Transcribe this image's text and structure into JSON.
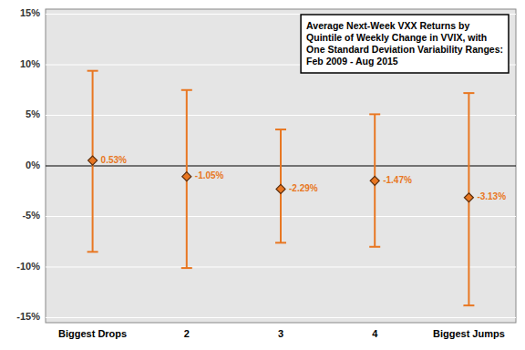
{
  "chart_data": {
    "type": "errorbar",
    "title": "Average Next-Week VXX Returns by\nQuintile of Weekly Change in VVIX, with\nOne Standard Deviation Variability Ranges:\nFeb 2009 - Aug 2015",
    "categories": [
      "Biggest Drops",
      "2",
      "3",
      "4",
      "Biggest Jumps"
    ],
    "values": [
      0.0053,
      -0.0105,
      -0.0229,
      -0.0147,
      -0.0313
    ],
    "value_labels": [
      "0.53%",
      "-1.05%",
      "-2.29%",
      "-1.47%",
      "-3.13%"
    ],
    "upper": [
      0.094,
      0.075,
      0.036,
      0.051,
      0.072
    ],
    "lower": [
      -0.085,
      -0.101,
      -0.076,
      -0.08,
      -0.138
    ],
    "color": "#E87722",
    "ylim": [
      -0.155,
      0.155
    ],
    "yticks": [
      {
        "value": -0.15,
        "label": "-15%"
      },
      {
        "value": -0.1,
        "label": "-10%"
      },
      {
        "value": -0.05,
        "label": "-5%"
      },
      {
        "value": 0.0,
        "label": "0%"
      },
      {
        "value": 0.05,
        "label": "5%"
      },
      {
        "value": 0.1,
        "label": "10%"
      },
      {
        "value": 0.15,
        "label": "15%"
      }
    ],
    "grid": true,
    "data_labels": true
  }
}
